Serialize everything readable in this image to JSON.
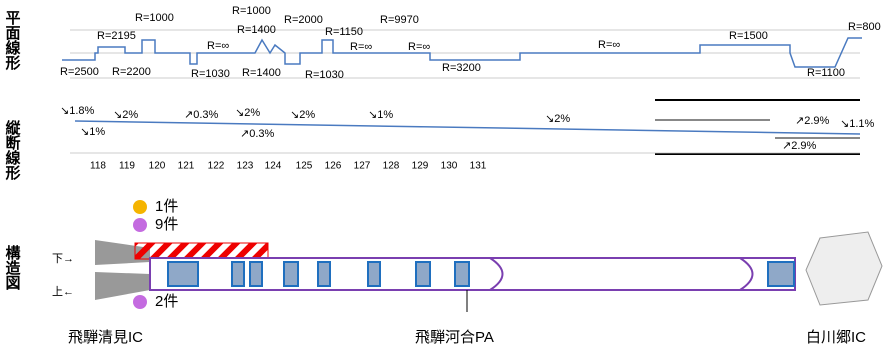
{
  "section_labels": [
    "平面線形",
    "縦断線形",
    "構造図"
  ],
  "plan": {
    "radius_labels": [
      "R=2500",
      "R=2195",
      "R=2200",
      "R=1000",
      "R=1030",
      "R=∞",
      "R=1400",
      "R=1000",
      "R=1400",
      "R=2000",
      "R=1030",
      "R=1150",
      "R=∞",
      "R=9970",
      "R=∞",
      "R=3200",
      "R=∞",
      "R=1500",
      "R=1100",
      "R=800"
    ]
  },
  "profile": {
    "grade_labels": [
      "↘1.8%",
      "↘1%",
      "↘2%",
      "↗0.3%",
      "↘2%",
      "↗0.3%",
      "↘2%",
      "↘1%",
      "↘2%",
      "↗2.9%",
      "↘1.1%",
      "↗2.9%"
    ],
    "km_labels": [
      118,
      119,
      120,
      121,
      122,
      123,
      124,
      125,
      126,
      127,
      128,
      129,
      130,
      131
    ]
  },
  "structure": {
    "direction_labels": [
      "下→",
      "上←"
    ],
    "legend": [
      "1件",
      "9件",
      "2件"
    ]
  },
  "places": [
    "飛騨清見IC",
    "飛騨河合PA",
    "白川郷IC"
  ]
}
